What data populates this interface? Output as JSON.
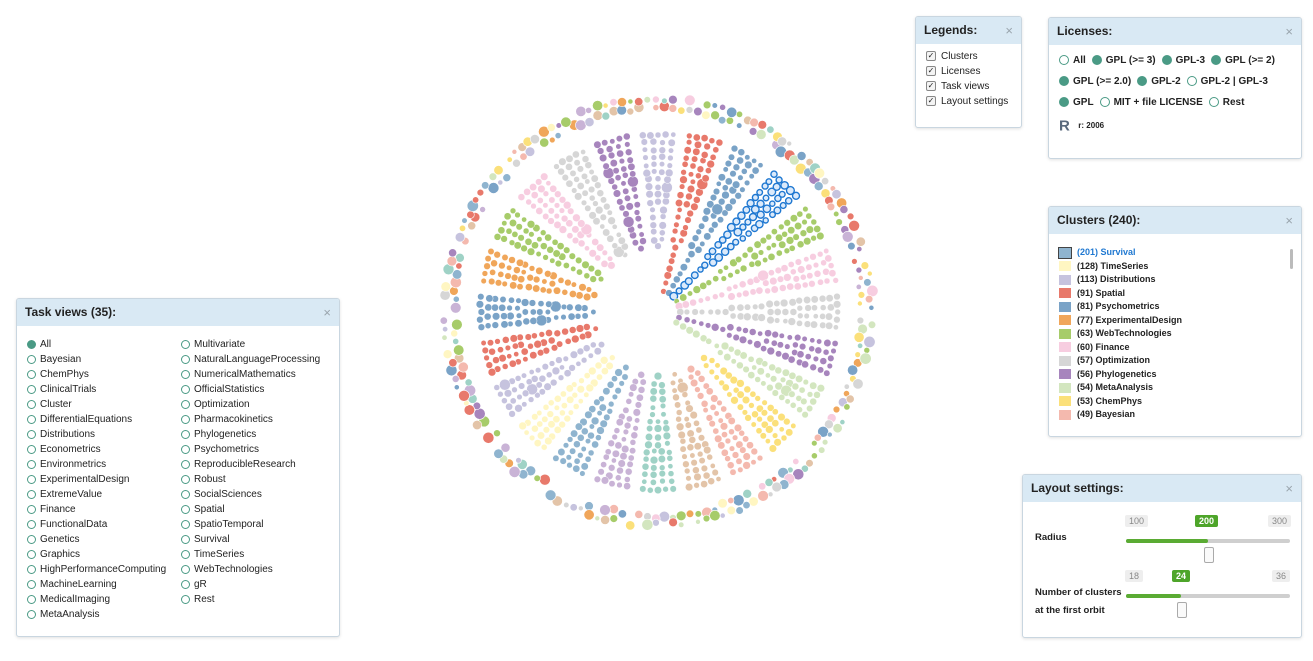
{
  "task_views": {
    "title": "Task views (35):",
    "close": "×",
    "col1": [
      "All",
      "Bayesian",
      "ChemPhys",
      "ClinicalTrials",
      "Cluster",
      "DifferentialEquations",
      "Distributions",
      "Econometrics",
      "Environmetrics",
      "ExperimentalDesign",
      "ExtremeValue",
      "Finance",
      "FunctionalData",
      "Genetics",
      "Graphics",
      "HighPerformanceComputing",
      "MachineLearning",
      "MedicalImaging",
      "MetaAnalysis"
    ],
    "col2": [
      "Multivariate",
      "NaturalLanguageProcessing",
      "NumericalMathematics",
      "OfficialStatistics",
      "Optimization",
      "Pharmacokinetics",
      "Phylogenetics",
      "Psychometrics",
      "ReproducibleResearch",
      "Robust",
      "SocialSciences",
      "Spatial",
      "SpatioTemporal",
      "Survival",
      "TimeSeries",
      "WebTechnologies",
      "gR",
      "Rest"
    ],
    "selected": "All"
  },
  "legends": {
    "title": "Legends:",
    "close": "×",
    "items": [
      "Clusters",
      "Licenses",
      "Task views",
      "Layout settings"
    ]
  },
  "licenses": {
    "title": "Licenses:",
    "close": "×",
    "rows": [
      [
        {
          "label": "All",
          "on": false
        },
        {
          "label": "GPL (>= 3)",
          "on": true
        },
        {
          "label": "GPL-3",
          "on": true
        },
        {
          "label": "GPL (>= 2)",
          "on": true
        }
      ],
      [
        {
          "label": "GPL (>= 2.0)",
          "on": true
        },
        {
          "label": "GPL-2",
          "on": true
        },
        {
          "label": "GPL-2 | GPL-3",
          "on": false
        }
      ],
      [
        {
          "label": "GPL",
          "on": true
        },
        {
          "label": "MIT + file LICENSE",
          "on": false
        },
        {
          "label": "Rest",
          "on": false
        }
      ]
    ],
    "r_logo": "R",
    "r_value": "r: 2006"
  },
  "clusters": {
    "title": "Clusters (240):",
    "close": "×",
    "items": [
      {
        "label": "(201) Survival",
        "color": "#8fb4cf",
        "highlight": true
      },
      {
        "label": "(128) TimeSeries",
        "color": "#fff6c2"
      },
      {
        "label": "(113) Distributions",
        "color": "#c6c3de"
      },
      {
        "label": "(91) Spatial",
        "color": "#e8796b"
      },
      {
        "label": "(81) Psychometrics",
        "color": "#7aa3c7"
      },
      {
        "label": "(77) ExperimentalDesign",
        "color": "#f0a65a"
      },
      {
        "label": "(63) WebTechnologies",
        "color": "#a7cc6a"
      },
      {
        "label": "(60) Finance",
        "color": "#f7cde0"
      },
      {
        "label": "(57) Optimization",
        "color": "#d6d6d6"
      },
      {
        "label": "(56) Phylogenetics",
        "color": "#a785bd"
      },
      {
        "label": "(54) MetaAnalysis",
        "color": "#d3e6bf"
      },
      {
        "label": "(53) ChemPhys",
        "color": "#fbe07a"
      },
      {
        "label": "(49) Bayesian",
        "color": "#f4b9ae"
      }
    ]
  },
  "layout_settings": {
    "title": "Layout settings:",
    "close": "×",
    "radius": {
      "label": "Radius",
      "min": "100",
      "value": "200",
      "max": "300",
      "fraction": 0.5
    },
    "clusters_orbit": {
      "label_1": "Number of clusters",
      "label_2": "at the first orbit",
      "min": "18",
      "value": "24",
      "max": "36",
      "fraction": 0.333
    }
  },
  "viz": {
    "colors": [
      "#8fb4cf",
      "#fff6c2",
      "#c6c3de",
      "#e8796b",
      "#7aa3c7",
      "#f0a65a",
      "#a7cc6a",
      "#f7cde0",
      "#d6d6d6",
      "#a785bd",
      "#d3e6bf",
      "#fbe07a",
      "#f4b9ae",
      "#e3c4a8",
      "#9fd2c6",
      "#c9b3d6"
    ],
    "highlight_color": "#1f78d1"
  }
}
